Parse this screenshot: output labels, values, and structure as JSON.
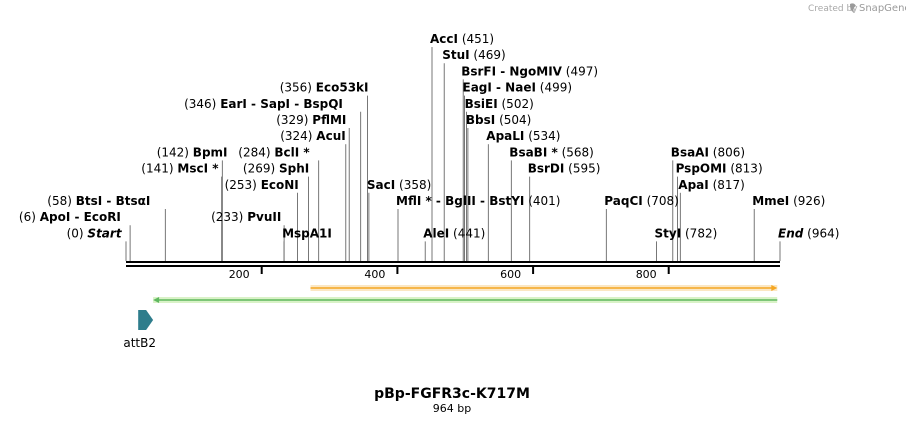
{
  "credit": {
    "prefix": "Created by",
    "brand": "SnapGene"
  },
  "plasmid": {
    "name": "pBp-FGFR3c-K717M",
    "length_label": "964 bp",
    "length_bp": 964
  },
  "axis": {
    "ticks": [
      200,
      400,
      600,
      800
    ]
  },
  "sites": [
    {
      "name": "AccI",
      "pos_label": "(451)",
      "bp": 451,
      "row": 0
    },
    {
      "name": "StuI",
      "pos_label": "(469)",
      "bp": 469,
      "row": 1
    },
    {
      "name": "BsrFI - NgoMIV",
      "pos_label": "(497)",
      "bp": 497,
      "row": 2
    },
    {
      "name": "EagI - NaeI",
      "pos_label": "(499)",
      "bp": 499,
      "row": 3
    },
    {
      "name": "BsiEI",
      "pos_label": "(502)",
      "bp": 502,
      "row": 4
    },
    {
      "name": "BbsI",
      "pos_label": "(504)",
      "bp": 504,
      "row": 5
    },
    {
      "name": "ApaLI",
      "pos_label": "(534)",
      "bp": 534,
      "row": 6
    },
    {
      "name": "BsaBI *",
      "pos_label": "(568)",
      "bp": 568,
      "row": 7
    },
    {
      "name": "BsrDI",
      "pos_label": "(595)",
      "bp": 595,
      "row": 8
    },
    {
      "name": "Eco53kI",
      "pos_label": "(356)",
      "bp": 356,
      "row": 3,
      "pos_first": true
    },
    {
      "name": "EarI - SapI - BspQI",
      "pos_label": "(346)",
      "bp": 346,
      "row": 4,
      "pos_first": true
    },
    {
      "name": "PflMI",
      "pos_label": "(329)",
      "bp": 329,
      "row": 5,
      "pos_first": true
    },
    {
      "name": "AcuI",
      "pos_label": "(324)",
      "bp": 324,
      "row": 6,
      "pos_first": true
    },
    {
      "name": "BpmI",
      "pos_label": "(142)",
      "bp": 142,
      "row": 7,
      "pos_first": true
    },
    {
      "name": "BclI *",
      "pos_label": "(284)",
      "bp": 284,
      "row": 7,
      "pos_first": true
    },
    {
      "name": "MscI *",
      "pos_label": "(141)",
      "bp": 141,
      "row": 8,
      "pos_first": true
    },
    {
      "name": "SphI",
      "pos_label": "(269)",
      "bp": 269,
      "row": 8,
      "pos_first": true
    },
    {
      "name": "EcoNI",
      "pos_label": "(253)",
      "bp": 253,
      "row": 9,
      "pos_first": true
    },
    {
      "name": "SacI",
      "pos_label": "(358)",
      "bp": 358,
      "row": 9
    },
    {
      "name": "BtsI - BtsαI",
      "pos_label": "(58)",
      "bp": 58,
      "row": 10,
      "pos_first": true
    },
    {
      "name": "PvuII",
      "pos_label": "(233)",
      "bp": 233,
      "row": 11,
      "pos_first": true
    },
    {
      "name": "MflI * - BglII - BstYI",
      "pos_label": "(401)",
      "bp": 401,
      "row": 10
    },
    {
      "name": "PaqCI",
      "pos_label": "(708)",
      "bp": 708,
      "row": 10
    },
    {
      "name": "ApoI - EcoRI",
      "pos_label": "(6)",
      "bp": 6,
      "row": 11,
      "pos_first": true
    },
    {
      "name": "MspA1I",
      "pos_label": "",
      "bp": 233,
      "row": 12
    },
    {
      "name": "AleI",
      "pos_label": "(441)",
      "bp": 441,
      "row": 12
    },
    {
      "name": "StyI",
      "pos_label": "(782)",
      "bp": 782,
      "row": 12
    },
    {
      "name": "BsaAI",
      "pos_label": "(806)",
      "bp": 806,
      "row": 7
    },
    {
      "name": "PspOMI",
      "pos_label": "(813)",
      "bp": 813,
      "row": 8
    },
    {
      "name": "ApaI",
      "pos_label": "(817)",
      "bp": 817,
      "row": 9
    },
    {
      "name": "MmeI",
      "pos_label": "(926)",
      "bp": 926,
      "row": 10
    },
    {
      "name": "Start",
      "pos_label": "(0)",
      "bp": 0,
      "row": 12,
      "pos_first": true,
      "italic": true
    },
    {
      "name": "End",
      "pos_label": "(964)",
      "bp": 964,
      "row": 12,
      "italic": true
    }
  ],
  "features": [
    {
      "name": "orange-orf",
      "start_bp": 272,
      "end_bp": 960,
      "color": "#f5a623",
      "fill": "#fbe7c3"
    },
    {
      "name": "green-orf",
      "start_bp": 40,
      "end_bp": 960,
      "color": "#5fb85f",
      "fill": "#d9f2c7"
    },
    {
      "name": "attB2",
      "label": "attB2",
      "start_bp": 18,
      "end_bp": 40,
      "color": "#2e7d8c"
    }
  ]
}
